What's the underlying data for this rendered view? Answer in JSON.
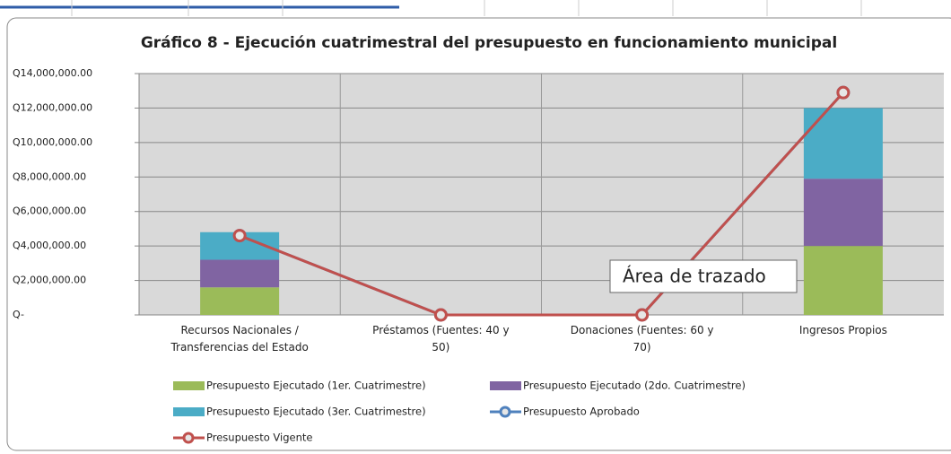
{
  "chart_data": {
    "type": "bar",
    "title": "Gráfico 8 - Ejecución cuatrimestral del presupuesto en funcionamiento municipal",
    "categories": [
      "Recursos Nacionales / Transferencias del Estado",
      "Préstamos (Fuentes: 40 y 50)",
      "Donaciones  (Fuentes: 60 y 70)",
      "Ingresos Propios"
    ],
    "stacked": true,
    "series": [
      {
        "name": "Presupuesto Ejecutado (1er. Cuatrimestre)",
        "type": "bar",
        "color": "#9bbb59",
        "values": [
          1600000,
          0,
          0,
          4000000
        ]
      },
      {
        "name": "Presupuesto Ejecutado (2do. Cuatrimestre)",
        "type": "bar",
        "color": "#8064a2",
        "values": [
          1600000,
          0,
          0,
          3900000
        ]
      },
      {
        "name": "Presupuesto Ejecutado (3er. Cuatrimestre)",
        "type": "bar",
        "color": "#4bacc6",
        "values": [
          1600000,
          0,
          0,
          4100000
        ]
      },
      {
        "name": "Presupuesto Aprobado",
        "type": "line",
        "color": "#4f81bd",
        "values": [
          4600000,
          0,
          0,
          12900000
        ]
      },
      {
        "name": "Presupuesto Vigente",
        "type": "line",
        "color": "#c0504d",
        "values": [
          4600000,
          0,
          0,
          12900000
        ]
      }
    ],
    "ylim": [
      0,
      14000000
    ],
    "yticks": [
      {
        "value": 0,
        "label": "Q-"
      },
      {
        "value": 2000000,
        "label": "Q2,000,000.00"
      },
      {
        "value": 4000000,
        "label": "Q4,000,000.00"
      },
      {
        "value": 6000000,
        "label": "Q6,000,000.00"
      },
      {
        "value": 8000000,
        "label": "Q8,000,000.00"
      },
      {
        "value": 10000000,
        "label": "Q10,000,000.00"
      },
      {
        "value": 12000000,
        "label": "Q12,000,000.00"
      },
      {
        "value": 14000000,
        "label": "Q14,000,000.00"
      }
    ],
    "grid": true,
    "legend": "bottom",
    "tooltip": "Área de trazado"
  }
}
